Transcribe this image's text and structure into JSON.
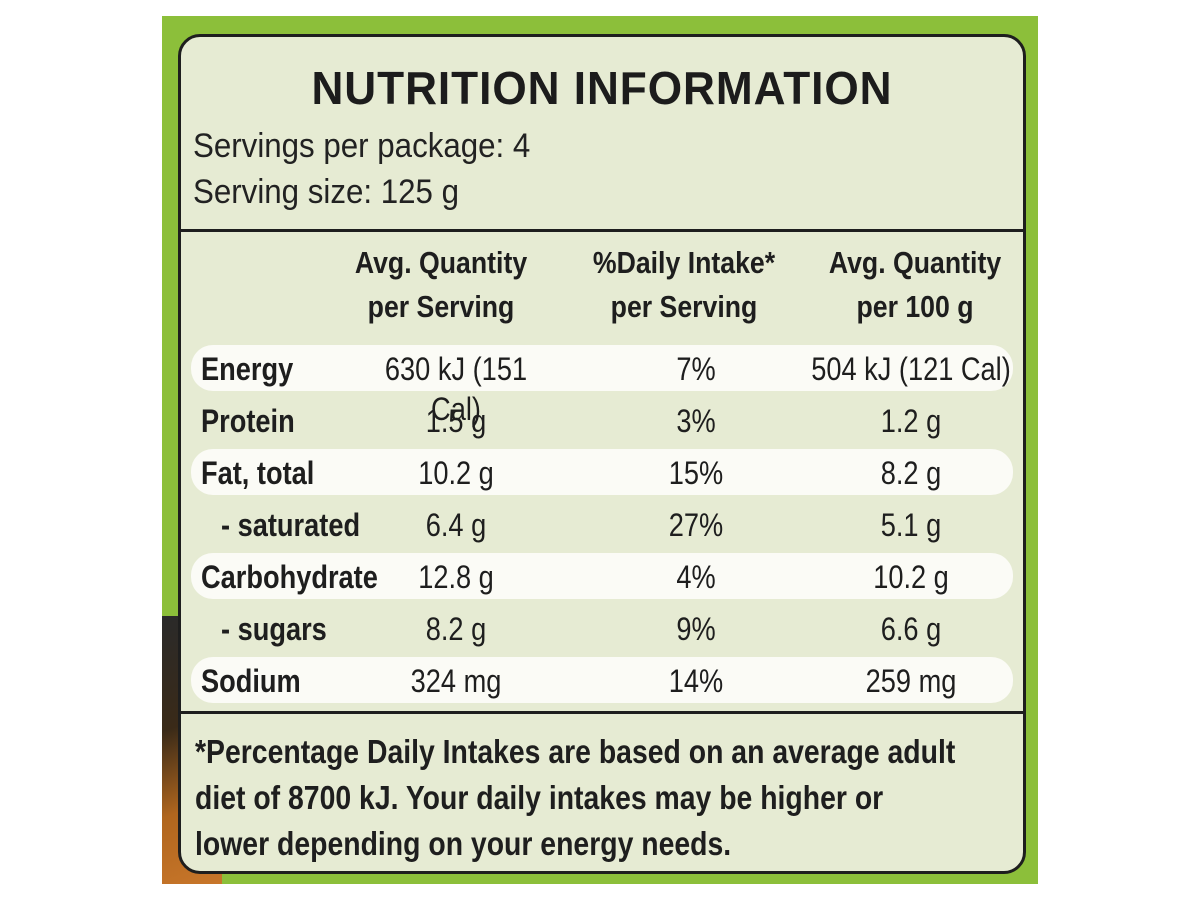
{
  "panel": {
    "title": "NUTRITION INFORMATION",
    "servings_per_package": "Servings per package: 4",
    "serving_size": "Serving size: 125 g"
  },
  "columns": [
    {
      "line1": "Avg. Quantity",
      "line2": "per Serving"
    },
    {
      "line1": "%Daily Intake*",
      "line2": "per Serving"
    },
    {
      "line1": "Avg. Quantity",
      "line2": "per 100 g"
    }
  ],
  "rows": [
    {
      "name": "Energy",
      "per_serving": "630 kJ (151 Cal)",
      "daily_intake": "7%",
      "per_100g": "504 kJ (121 Cal)",
      "sub": false,
      "band": true
    },
    {
      "name": "Protein",
      "per_serving": "1.5 g",
      "daily_intake": "3%",
      "per_100g": "1.2 g",
      "sub": false,
      "band": false
    },
    {
      "name": "Fat, total",
      "per_serving": "10.2 g",
      "daily_intake": "15%",
      "per_100g": "8.2 g",
      "sub": false,
      "band": true
    },
    {
      "name": "- saturated",
      "per_serving": "6.4 g",
      "daily_intake": "27%",
      "per_100g": "5.1 g",
      "sub": true,
      "band": false
    },
    {
      "name": "Carbohydrate",
      "per_serving": "12.8 g",
      "daily_intake": "4%",
      "per_100g": "10.2 g",
      "sub": false,
      "band": true
    },
    {
      "name": "- sugars",
      "per_serving": "8.2 g",
      "daily_intake": "9%",
      "per_100g": "6.6 g",
      "sub": true,
      "band": false
    },
    {
      "name": "Sodium",
      "per_serving": "324 mg",
      "daily_intake": "14%",
      "per_100g": "259 mg",
      "sub": false,
      "band": true
    }
  ],
  "footnote": {
    "line1": "*Percentage Daily Intakes are based on an average adult",
    "line2": "diet of 8700 kJ. Your daily intakes may be higher or",
    "line3": "lower depending on your energy needs."
  },
  "colors": {
    "packaging_green": "#8cbf3a",
    "panel_background": "#e6ebd3",
    "row_band": "#fbfbf6",
    "ink": "#1e1e1e"
  }
}
